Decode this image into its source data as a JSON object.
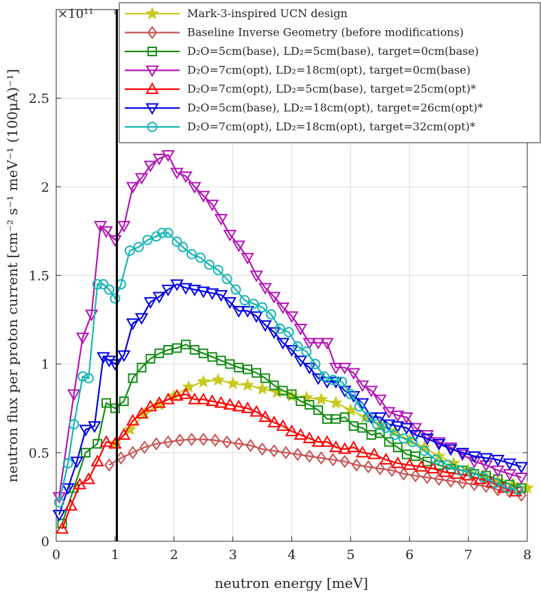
{
  "chart_data": {
    "type": "line",
    "title": "",
    "xlabel": "neutron energy [meV]",
    "ylabel": "neutron flux per proton current [cm⁻² s⁻¹ meV⁻¹ (100μA)⁻¹]",
    "y_multiplier": "×10¹¹",
    "xlim": [
      0,
      8
    ],
    "ylim": [
      0,
      3
    ],
    "xticks": [
      "0",
      "1",
      "2",
      "3",
      "4",
      "5",
      "6",
      "7",
      "8"
    ],
    "yticks": [
      "0",
      "0.5",
      "1",
      "1.5",
      "2",
      "2.5"
    ],
    "grid": true,
    "legend_position": "top-right",
    "vline_x": 1.03,
    "series": [
      {
        "name": "Mark-3-inspired UCN design",
        "color": "#c8c81e",
        "marker": "star",
        "x": [
          1.0,
          1.25,
          1.5,
          1.75,
          2.0,
          2.25,
          2.5,
          2.75,
          3.0,
          3.25,
          3.5,
          3.75,
          4.0,
          4.25,
          4.5,
          4.75,
          5.0,
          5.25,
          5.5,
          5.75,
          6.0,
          6.25,
          6.5,
          6.75,
          7.0,
          7.25,
          7.5,
          7.75,
          8.0
        ],
        "y": [
          0.55,
          0.63,
          0.72,
          0.77,
          0.82,
          0.87,
          0.9,
          0.91,
          0.89,
          0.88,
          0.86,
          0.84,
          0.82,
          0.81,
          0.8,
          0.78,
          0.74,
          0.7,
          0.66,
          0.62,
          0.57,
          0.53,
          0.48,
          0.44,
          0.4,
          0.37,
          0.34,
          0.32,
          0.3
        ]
      },
      {
        "name": "Baseline Inverse Geometry (before modifications)",
        "color": "#c85050",
        "marker": "diamond",
        "x": [
          0.9,
          1.1,
          1.3,
          1.5,
          1.7,
          1.9,
          2.1,
          2.3,
          2.5,
          2.7,
          2.9,
          3.1,
          3.3,
          3.5,
          3.7,
          3.9,
          4.1,
          4.3,
          4.5,
          4.7,
          4.9,
          5.1,
          5.3,
          5.5,
          5.7,
          5.9,
          6.1,
          6.3,
          6.5,
          6.7,
          6.9,
          7.1,
          7.3,
          7.5,
          7.7,
          7.9
        ],
        "y": [
          0.43,
          0.47,
          0.5,
          0.53,
          0.55,
          0.56,
          0.57,
          0.575,
          0.575,
          0.57,
          0.56,
          0.55,
          0.54,
          0.52,
          0.51,
          0.5,
          0.49,
          0.48,
          0.47,
          0.46,
          0.45,
          0.43,
          0.42,
          0.41,
          0.4,
          0.38,
          0.37,
          0.36,
          0.35,
          0.34,
          0.33,
          0.32,
          0.31,
          0.29,
          0.28,
          0.26
        ]
      },
      {
        "name": "D₂O=5cm(base), LD₂=5cm(base), target=0cm(base)",
        "color": "#148c14",
        "marker": "square",
        "x": [
          0.1,
          0.3,
          0.5,
          0.7,
          0.85,
          1.0,
          1.15,
          1.3,
          1.45,
          1.6,
          1.75,
          1.9,
          2.05,
          2.2,
          2.35,
          2.5,
          2.65,
          2.8,
          2.95,
          3.1,
          3.25,
          3.4,
          3.55,
          3.7,
          3.85,
          4.0,
          4.15,
          4.3,
          4.45,
          4.6,
          4.75,
          4.9,
          5.05,
          5.2,
          5.35,
          5.5,
          5.65,
          5.8,
          5.95,
          6.1,
          6.3,
          6.5,
          6.7,
          6.9,
          7.1,
          7.3,
          7.5,
          7.7,
          7.9
        ],
        "y": [
          0.1,
          0.3,
          0.5,
          0.55,
          0.78,
          0.75,
          0.79,
          0.92,
          0.98,
          1.03,
          1.06,
          1.08,
          1.09,
          1.11,
          1.08,
          1.06,
          1.04,
          1.02,
          1.0,
          0.98,
          0.97,
          0.95,
          0.92,
          0.88,
          0.85,
          0.83,
          0.79,
          0.77,
          0.74,
          0.69,
          0.69,
          0.7,
          0.65,
          0.64,
          0.6,
          0.61,
          0.56,
          0.53,
          0.49,
          0.48,
          0.45,
          0.43,
          0.41,
          0.4,
          0.38,
          0.37,
          0.35,
          0.32,
          0.3
        ]
      },
      {
        "name": "D₂O=7cm(opt), LD₂=18cm(opt), target=0cm(base)",
        "color": "#b414b4",
        "marker": "tri-down",
        "x": [
          0.05,
          0.3,
          0.45,
          0.6,
          0.75,
          0.85,
          1.0,
          1.15,
          1.3,
          1.45,
          1.6,
          1.75,
          1.9,
          2.05,
          2.2,
          2.35,
          2.5,
          2.65,
          2.8,
          2.95,
          3.1,
          3.25,
          3.4,
          3.55,
          3.7,
          3.85,
          4.0,
          4.15,
          4.3,
          4.45,
          4.6,
          4.75,
          4.9,
          5.05,
          5.2,
          5.35,
          5.5,
          5.65,
          5.8,
          5.95,
          6.1,
          6.3,
          6.5,
          6.7,
          6.9,
          7.1,
          7.3,
          7.5,
          7.7,
          7.9
        ],
        "y": [
          0.25,
          0.83,
          1.15,
          1.28,
          1.78,
          1.75,
          1.7,
          1.78,
          2.0,
          2.05,
          2.12,
          2.16,
          2.18,
          2.08,
          2.06,
          2.0,
          1.95,
          1.9,
          1.82,
          1.73,
          1.67,
          1.6,
          1.5,
          1.43,
          1.38,
          1.32,
          1.27,
          1.2,
          1.12,
          1.12,
          1.12,
          0.98,
          0.98,
          0.95,
          0.88,
          0.85,
          0.8,
          0.73,
          0.71,
          0.7,
          0.64,
          0.6,
          0.56,
          0.53,
          0.49,
          0.45,
          0.43,
          0.4,
          0.38,
          0.36
        ]
      },
      {
        "name": "D₂O=7cm(opt), LD₂=5cm(base), target=25cm(opt)*",
        "color": "#ff0000",
        "marker": "tri-up",
        "x": [
          0.1,
          0.25,
          0.4,
          0.55,
          0.7,
          0.85,
          1.0,
          1.15,
          1.3,
          1.45,
          1.6,
          1.75,
          1.9,
          2.05,
          2.2,
          2.35,
          2.5,
          2.65,
          2.8,
          2.95,
          3.1,
          3.25,
          3.4,
          3.55,
          3.7,
          3.85,
          4.0,
          4.15,
          4.3,
          4.45,
          4.6,
          4.75,
          4.9,
          5.05,
          5.2,
          5.4,
          5.6,
          5.8,
          6.0,
          6.2,
          6.4,
          6.6,
          6.8,
          7.0,
          7.2,
          7.4,
          7.6,
          7.8
        ],
        "y": [
          0.07,
          0.2,
          0.32,
          0.35,
          0.45,
          0.56,
          0.55,
          0.6,
          0.68,
          0.72,
          0.76,
          0.78,
          0.8,
          0.82,
          0.83,
          0.8,
          0.8,
          0.79,
          0.78,
          0.77,
          0.76,
          0.75,
          0.73,
          0.7,
          0.67,
          0.65,
          0.62,
          0.6,
          0.58,
          0.56,
          0.56,
          0.53,
          0.52,
          0.53,
          0.5,
          0.49,
          0.46,
          0.44,
          0.43,
          0.42,
          0.41,
          0.39,
          0.38,
          0.37,
          0.35,
          0.33,
          0.3,
          0.28
        ]
      },
      {
        "name": "D₂O=5cm(base), LD₂=18cm(opt), target=26cm(opt)*",
        "color": "#0000e6",
        "marker": "tri-down",
        "x": [
          0.05,
          0.2,
          0.35,
          0.5,
          0.65,
          0.8,
          0.9,
          1.0,
          1.15,
          1.3,
          1.45,
          1.6,
          1.75,
          1.9,
          2.05,
          2.2,
          2.35,
          2.5,
          2.65,
          2.8,
          2.95,
          3.1,
          3.25,
          3.4,
          3.55,
          3.7,
          3.85,
          4.0,
          4.15,
          4.3,
          4.45,
          4.6,
          4.75,
          4.9,
          5.05,
          5.2,
          5.35,
          5.5,
          5.65,
          5.8,
          5.95,
          6.1,
          6.3,
          6.5,
          6.7,
          6.9,
          7.1,
          7.3,
          7.5,
          7.7,
          7.9
        ],
        "y": [
          0.15,
          0.3,
          0.45,
          0.63,
          0.65,
          1.04,
          1.02,
          1.0,
          1.05,
          1.23,
          1.26,
          1.35,
          1.38,
          1.42,
          1.45,
          1.43,
          1.42,
          1.41,
          1.4,
          1.39,
          1.35,
          1.3,
          1.3,
          1.27,
          1.22,
          1.18,
          1.12,
          1.08,
          1.02,
          0.98,
          0.92,
          0.9,
          0.9,
          0.85,
          0.82,
          0.78,
          0.7,
          0.7,
          0.66,
          0.65,
          0.64,
          0.6,
          0.58,
          0.55,
          0.52,
          0.5,
          0.48,
          0.47,
          0.46,
          0.44,
          0.42
        ]
      },
      {
        "name": "D₂O=7cm(opt), LD₂=18cm(opt), target=32cm(opt)*",
        "color": "#14b4b4",
        "marker": "circle",
        "x": [
          0.05,
          0.2,
          0.3,
          0.45,
          0.55,
          0.7,
          0.8,
          0.9,
          1.0,
          1.1,
          1.25,
          1.4,
          1.55,
          1.7,
          1.8,
          1.9,
          2.05,
          2.15,
          2.3,
          2.45,
          2.6,
          2.75,
          2.9,
          3.05,
          3.2,
          3.35,
          3.5,
          3.65,
          3.8,
          3.95,
          4.1,
          4.25,
          4.4,
          4.55,
          4.7,
          4.85,
          5.0,
          5.15,
          5.3,
          5.45,
          5.6,
          5.75,
          5.9,
          6.05,
          6.25,
          6.45,
          6.65,
          6.85,
          7.05,
          7.25,
          7.45,
          7.65,
          7.85
        ],
        "y": [
          0.22,
          0.44,
          0.66,
          0.93,
          0.92,
          1.45,
          1.45,
          1.42,
          1.37,
          1.45,
          1.64,
          1.66,
          1.7,
          1.72,
          1.74,
          1.74,
          1.69,
          1.66,
          1.62,
          1.6,
          1.56,
          1.53,
          1.48,
          1.42,
          1.36,
          1.34,
          1.32,
          1.28,
          1.2,
          1.18,
          1.1,
          1.07,
          1.0,
          0.93,
          0.91,
          0.9,
          0.83,
          0.76,
          0.7,
          0.66,
          0.64,
          0.6,
          0.58,
          0.56,
          0.51,
          0.46,
          0.43,
          0.4,
          0.39,
          0.36,
          0.33,
          0.3,
          0.29
        ]
      }
    ]
  }
}
